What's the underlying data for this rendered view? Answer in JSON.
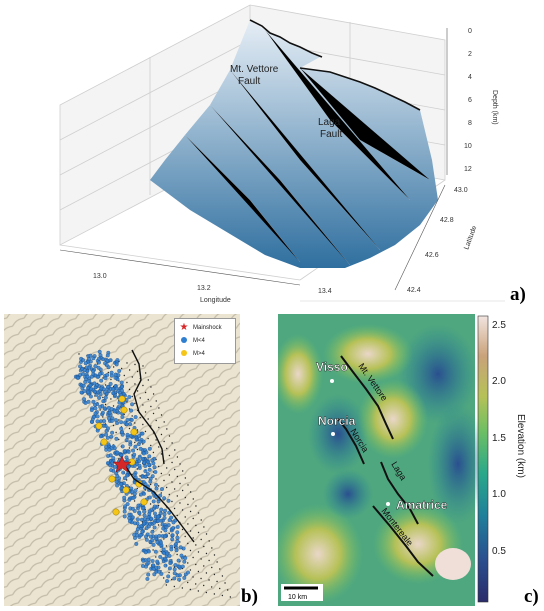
{
  "panel_a": {
    "label": "a)",
    "axis_depth": "Depth (km)",
    "axis_latitude": "Latitude",
    "axis_longitude": "Longitude",
    "depth_ticks": [
      "0",
      "2",
      "4",
      "6",
      "8",
      "10",
      "12"
    ],
    "latitude_ticks": [
      "43.0",
      "42.8",
      "42.6",
      "42.4"
    ],
    "longitude_ticks": [
      "13.0",
      "13.2",
      "13.4"
    ],
    "fault_label_1a": "Mt. Vettore",
    "fault_label_1b": "Fault",
    "fault_label_2a": "Laga",
    "fault_label_2b": "Fault",
    "surface_color_top": "#e6eef6",
    "surface_color_bottom": "#2f6f9f"
  },
  "panel_b": {
    "label": "b)",
    "legend": [
      {
        "symbol": "star",
        "color": "#d62728",
        "text": "Mainshock"
      },
      {
        "symbol": "dot",
        "color": "#2f7fd0",
        "text": "M<4"
      },
      {
        "symbol": "dot",
        "color": "#f5c518",
        "text": "M>4"
      }
    ]
  },
  "panel_c": {
    "label": "c)",
    "towns": [
      "Visso",
      "Norcia",
      "Amatrice"
    ],
    "faults": [
      "Mt. Vettore",
      "Norcia",
      "Laga",
      "Montereale"
    ],
    "scalebar": "10 km",
    "colorbar_label": "Elevation (km)",
    "colorbar_ticks": [
      "2.5",
      "2.0",
      "1.5",
      "1.0",
      "0.5"
    ],
    "colormap": [
      "#f2e4e0",
      "#c9a27a",
      "#b6c157",
      "#6fbf63",
      "#2aa88a",
      "#1f7f9a",
      "#2a4f8f",
      "#2b2b6b"
    ]
  }
}
